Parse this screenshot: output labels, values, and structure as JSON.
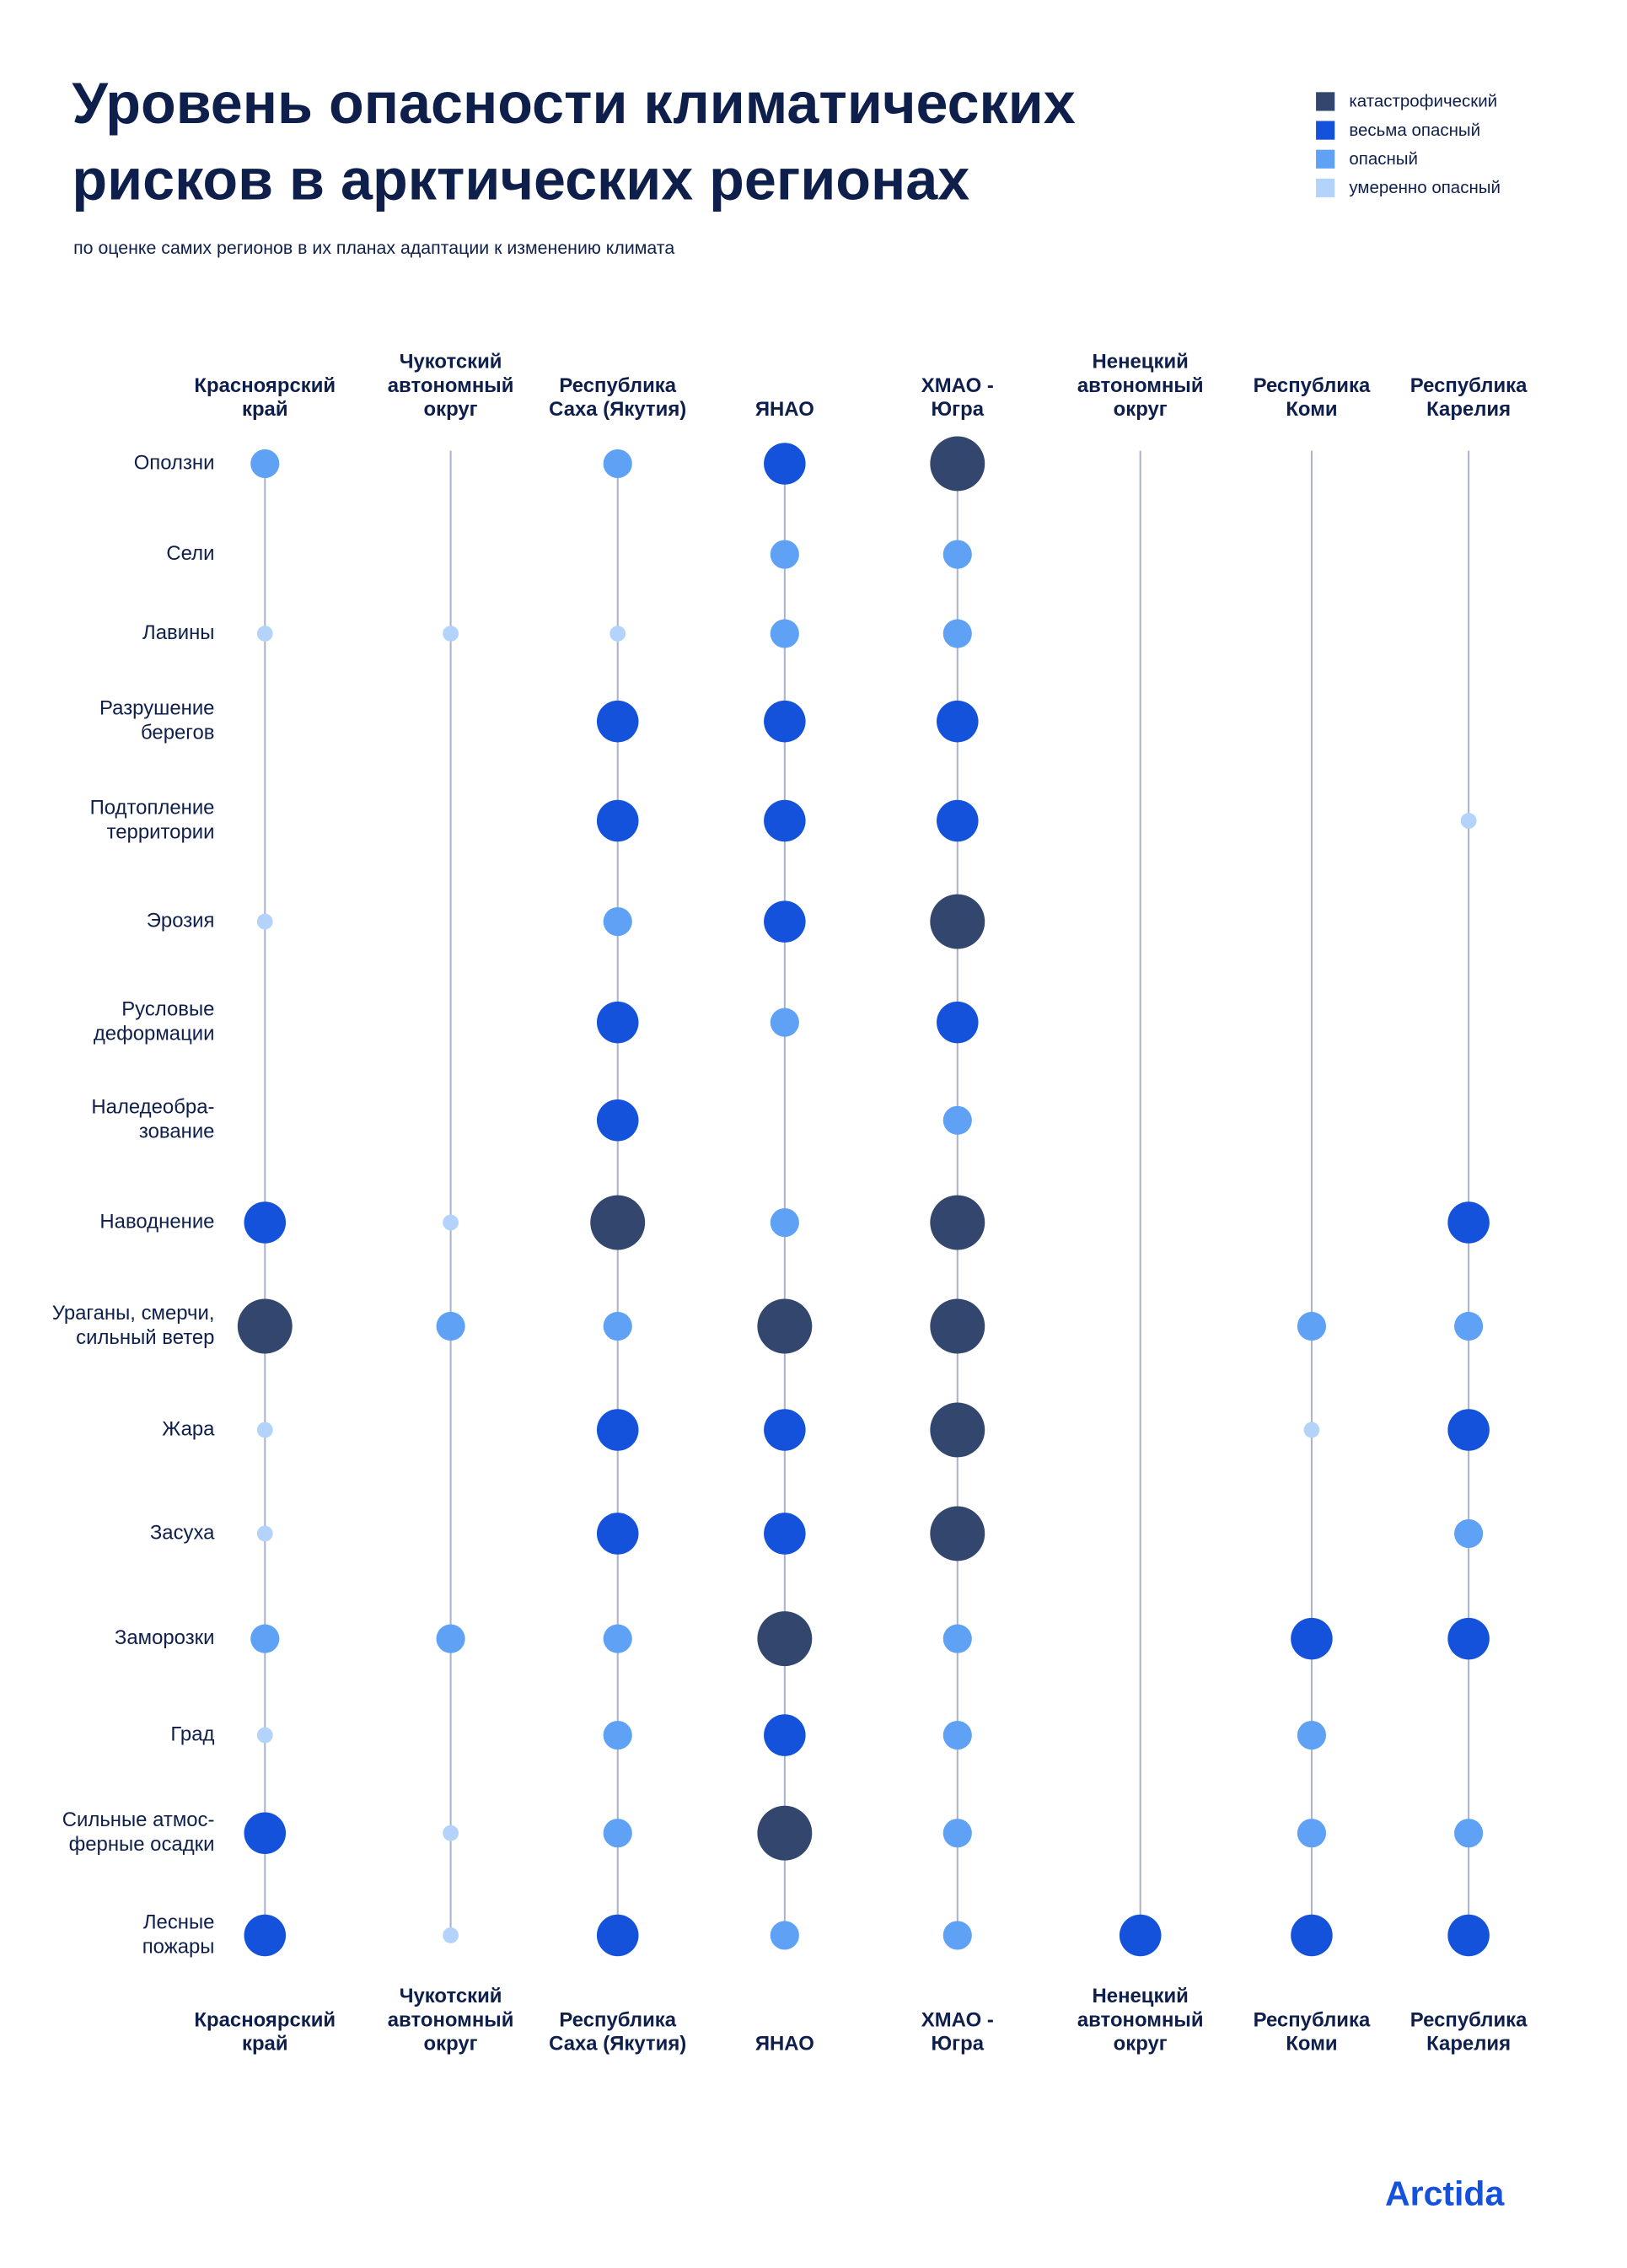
{
  "chart_data": {
    "type": "dot-matrix",
    "title": [
      "Уровень опасности климатических",
      "рисков в арктических регионах"
    ],
    "subtitle": "по оценке самих регионов в их планах адаптации к изменению климата",
    "legend": [
      {
        "name": "катастрофический",
        "color": "#33466e"
      },
      {
        "name": "весьма опасный",
        "color": "#1552db"
      },
      {
        "name": "опасный",
        "color": "#5fa2f5"
      },
      {
        "name": "умеренно опасный",
        "color": "#b3d3fa"
      }
    ],
    "categories": [
      [
        "Оползни"
      ],
      [
        "Сели"
      ],
      [
        "Лавины"
      ],
      [
        "Разрушение",
        "берегов"
      ],
      [
        "Подтопление",
        "территории"
      ],
      [
        "Эрозия"
      ],
      [
        "Русловые",
        "деформации"
      ],
      [
        "Наледеобра-",
        "зование"
      ],
      [
        "Наводнение"
      ],
      [
        "Ураганы, смерчи,",
        "сильный ветер"
      ],
      [
        "Жара"
      ],
      [
        "Засуха"
      ],
      [
        "Заморозки"
      ],
      [
        "Град"
      ],
      [
        "Сильные атмос-",
        "ферные осадки"
      ],
      [
        "Лесные",
        "пожары"
      ]
    ],
    "series": [
      {
        "name": [
          "Красноярский",
          "край"
        ],
        "values": [
          2,
          null,
          3,
          null,
          null,
          3,
          null,
          null,
          1,
          0,
          3,
          3,
          2,
          3,
          1,
          1
        ]
      },
      {
        "name": [
          "Чукотский",
          "автономный",
          "округ"
        ],
        "values": [
          null,
          null,
          3,
          null,
          null,
          null,
          null,
          null,
          3,
          2,
          null,
          null,
          2,
          null,
          3,
          3
        ]
      },
      {
        "name": [
          "Республика",
          "Саха (Якутия)"
        ],
        "values": [
          2,
          null,
          3,
          1,
          1,
          2,
          1,
          1,
          0,
          2,
          1,
          1,
          2,
          2,
          2,
          1
        ]
      },
      {
        "name": [
          "ЯНАО"
        ],
        "values": [
          1,
          2,
          2,
          1,
          1,
          1,
          2,
          null,
          2,
          0,
          1,
          1,
          0,
          1,
          0,
          2
        ]
      },
      {
        "name": [
          "ХМАО -",
          "Югра"
        ],
        "values": [
          0,
          2,
          2,
          1,
          1,
          0,
          1,
          2,
          0,
          0,
          0,
          0,
          2,
          2,
          2,
          2
        ]
      },
      {
        "name": [
          "Ненецкий",
          "автономный",
          "округ"
        ],
        "values": [
          null,
          null,
          null,
          null,
          null,
          null,
          null,
          null,
          null,
          null,
          null,
          null,
          null,
          null,
          null,
          1
        ]
      },
      {
        "name": [
          "Республика",
          "Коми"
        ],
        "values": [
          null,
          null,
          null,
          null,
          null,
          null,
          null,
          null,
          null,
          2,
          3,
          null,
          1,
          2,
          2,
          1
        ]
      },
      {
        "name": [
          "Республика",
          "Карелия"
        ],
        "values": [
          null,
          null,
          null,
          null,
          3,
          null,
          null,
          null,
          1,
          2,
          1,
          2,
          1,
          null,
          2,
          1
        ]
      }
    ],
    "logo": "Arctida"
  }
}
